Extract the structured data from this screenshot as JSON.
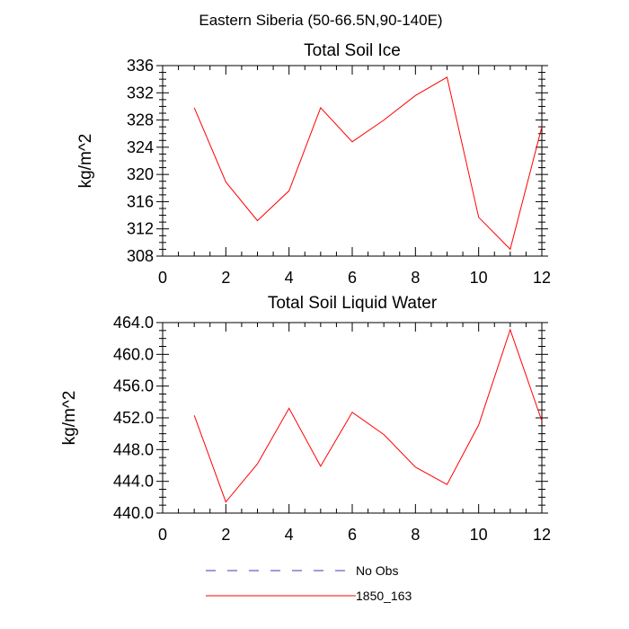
{
  "figure": {
    "title": "Eastern Siberia (50-66.5N,90-140E)"
  },
  "legend": {
    "placement": "bottom",
    "entries": [
      {
        "label": "No Obs",
        "color": "#3b3bb0",
        "dash": "dashed"
      },
      {
        "label": "1850_163",
        "color": "#ff0000",
        "dash": "solid"
      }
    ]
  },
  "chart_data": [
    {
      "type": "line",
      "title": "Total Soil Ice",
      "xlabel": "",
      "ylabel": "kg/m^2",
      "xlim": [
        0,
        12
      ],
      "ylim": [
        308,
        336
      ],
      "xticks": [
        "0",
        "2",
        "4",
        "6",
        "8",
        "10",
        "12"
      ],
      "yticks": [
        "308",
        "312",
        "316",
        "320",
        "324",
        "328",
        "332",
        "336"
      ],
      "grid": false,
      "x": [
        1,
        2,
        3,
        4,
        5,
        6,
        7,
        8,
        9,
        10,
        11,
        12
      ],
      "series": [
        {
          "name": "1850_163",
          "color": "#ff0000",
          "values": [
            329.8,
            318.9,
            313.2,
            317.6,
            329.8,
            324.8,
            328.0,
            331.6,
            334.3,
            313.7,
            309.0,
            327.0
          ]
        }
      ]
    },
    {
      "type": "line",
      "title": "Total Soil Liquid Water",
      "xlabel": "",
      "ylabel": "kg/m^2",
      "xlim": [
        0,
        12
      ],
      "ylim": [
        440,
        464
      ],
      "xticks": [
        "0",
        "2",
        "4",
        "6",
        "8",
        "10",
        "12"
      ],
      "yticks": [
        "440.0",
        "444.0",
        "448.0",
        "452.0",
        "456.0",
        "460.0",
        "464.0"
      ],
      "grid": false,
      "x": [
        1,
        2,
        3,
        4,
        5,
        6,
        7,
        8,
        9,
        10,
        11,
        12
      ],
      "series": [
        {
          "name": "1850_163",
          "color": "#ff0000",
          "values": [
            452.3,
            441.4,
            446.2,
            453.2,
            445.9,
            452.7,
            449.9,
            445.8,
            443.6,
            451.1,
            463.1,
            451.6
          ]
        }
      ]
    }
  ]
}
